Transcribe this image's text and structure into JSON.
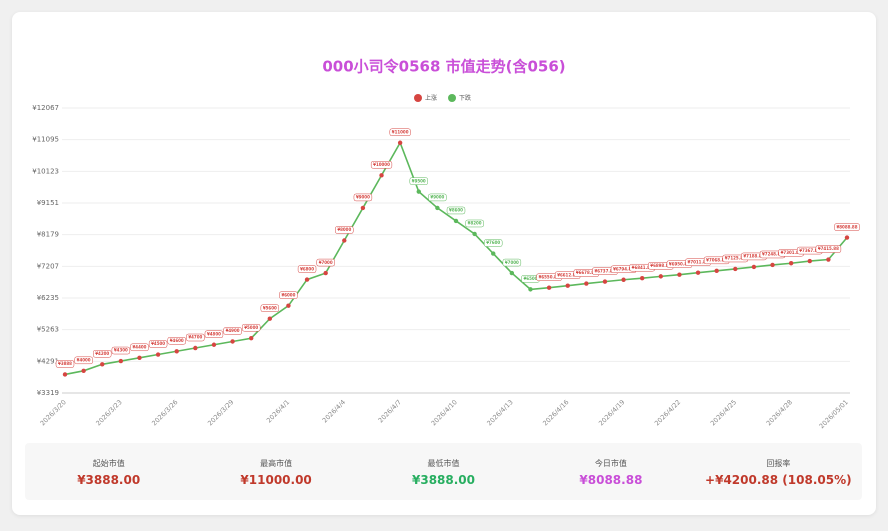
{
  "chart_data": {
    "type": "line",
    "title": "000小司令0568 市值走势(含056)",
    "legend": [
      {
        "name": "上涨",
        "color": "#d64541"
      },
      {
        "name": "下跌",
        "color": "#5cb85c"
      }
    ],
    "line_color": "#5cb85c",
    "grid": true,
    "categories": [
      "2026/3/20",
      null,
      null,
      "2026/3/23",
      null,
      null,
      "2026/3/26",
      null,
      null,
      "2026/3/29",
      null,
      null,
      "2026/4/1",
      null,
      null,
      "2026/4/4",
      null,
      null,
      "2026/4/7",
      null,
      null,
      "2026/4/10",
      null,
      null,
      "2026/4/13",
      null,
      null,
      "2026/4/16",
      null,
      null,
      "2026/4/19",
      null,
      null,
      "2026/4/22",
      null,
      null,
      "2026/4/25",
      null,
      null,
      "2026/4/28",
      null,
      null,
      "2026/05/01"
    ],
    "values": [
      3888,
      4000,
      4200,
      4300,
      4400,
      4500,
      4600,
      4700,
      4800,
      4900,
      5000,
      5600,
      6000,
      6800,
      7000,
      8000,
      9000,
      10000,
      11000,
      9500,
      9000,
      8600,
      8200,
      7600,
      7000,
      6500,
      6550.88,
      6612.88,
      6678.88,
      6737.88,
      6794.88,
      6841.88,
      6898.88,
      6950.88,
      7011.88,
      7068.88,
      7125.88,
      7188.88,
      7248.88,
      7301.88,
      7367.88,
      7415.88,
      8088.88
    ],
    "value_labels": [
      "¥3888",
      "¥4000",
      "¥4200",
      "¥4300",
      "¥4400",
      "¥4500",
      "¥4600",
      "¥4700",
      "¥4800",
      "¥4900",
      "¥5000",
      "¥5600",
      "¥6000",
      "¥6800",
      "¥7000",
      "¥8000",
      "¥9000",
      "¥10000",
      "¥11000",
      "¥9500",
      "¥9000",
      "¥8600",
      "¥8200",
      "¥7600",
      "¥7000",
      "¥6500",
      "¥6550.88",
      "¥6612.88",
      "¥6678.88",
      "¥6737.88",
      "¥6794.88",
      "¥6841.88",
      "¥6898.88",
      "¥6950.88",
      "¥7011.88",
      "¥7068.88",
      "¥7125.88",
      "¥7188.88",
      "¥7248.88",
      "¥7301.88",
      "¥7367.88",
      "¥7415.88",
      "¥8088.88"
    ],
    "ylim": [
      3319,
      12067
    ],
    "yticks": [
      {
        "value": 3319,
        "label": "¥3319"
      },
      {
        "value": 4291,
        "label": "¥4291"
      },
      {
        "value": 5263,
        "label": "¥5263"
      },
      {
        "value": 6235,
        "label": "¥6235"
      },
      {
        "value": 7207,
        "label": "¥7207"
      },
      {
        "value": 8179,
        "label": "¥8179"
      },
      {
        "value": 9151,
        "label": "¥9151"
      },
      {
        "value": 10123,
        "label": "¥10123"
      },
      {
        "value": 11095,
        "label": "¥11095"
      },
      {
        "value": 12067,
        "label": "¥12067"
      }
    ]
  },
  "stats": [
    {
      "label": "起始市值",
      "value": "¥3888.00",
      "color": "#c0392b"
    },
    {
      "label": "最高市值",
      "value": "¥11000.00",
      "color": "#c0392b"
    },
    {
      "label": "最低市值",
      "value": "¥3888.00",
      "color": "#27ae60"
    },
    {
      "label": "今日市值",
      "value": "¥8088.88",
      "color": "#c94fd8"
    },
    {
      "label": "回报率",
      "value": "+¥4200.88 (108.05%)",
      "color": "#c0392b"
    }
  ]
}
